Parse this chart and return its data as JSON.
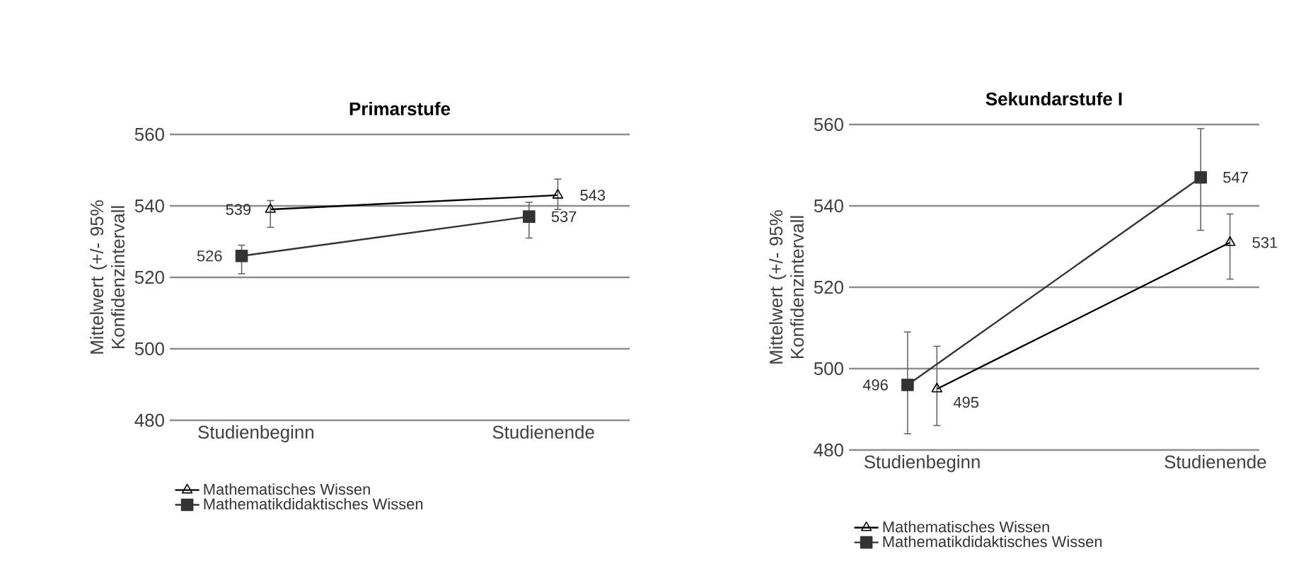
{
  "chart_data": [
    {
      "type": "line",
      "title": "Primarstufe",
      "ylabel": "Mittelwert (+/- 95% Konfidenzintervall",
      "categories": [
        "Studienbeginn",
        "Studienende"
      ],
      "ylim": [
        480,
        560
      ],
      "yticks": [
        480,
        500,
        520,
        540,
        560
      ],
      "grid": "y",
      "legend": "bottom",
      "data_labels": true,
      "series": [
        {
          "name": "Mathematisches Wissen",
          "color": "#000000",
          "marker": "triangle",
          "values": [
            539,
            543
          ],
          "errors": [
            [
              534,
              541.5
            ],
            [
              539,
              547.5
            ]
          ]
        },
        {
          "name": "Mathematikdidaktisches Wissen",
          "color": "#333333",
          "marker": "square",
          "values": [
            526,
            537
          ],
          "errors": [
            [
              521,
              529
            ],
            [
              531,
              541
            ]
          ]
        }
      ]
    },
    {
      "type": "line",
      "title": "Sekundarstufe I",
      "ylabel": "Mittelwert (+/- 95% Konfidenzintervall",
      "categories": [
        "Studienbeginn",
        "Studienende"
      ],
      "ylim": [
        480,
        560
      ],
      "yticks": [
        480,
        500,
        520,
        540,
        560
      ],
      "grid": "y",
      "legend": "bottom",
      "data_labels": true,
      "series": [
        {
          "name": "Mathematisches Wissen",
          "color": "#000000",
          "marker": "triangle",
          "values": [
            495,
            531
          ],
          "errors": [
            [
              486,
              505.5
            ],
            [
              522,
              538
            ]
          ]
        },
        {
          "name": "Mathematikdidaktisches Wissen",
          "color": "#333333",
          "marker": "square",
          "values": [
            496,
            547
          ],
          "errors": [
            [
              484,
              509
            ],
            [
              534,
              559
            ]
          ]
        }
      ]
    }
  ]
}
